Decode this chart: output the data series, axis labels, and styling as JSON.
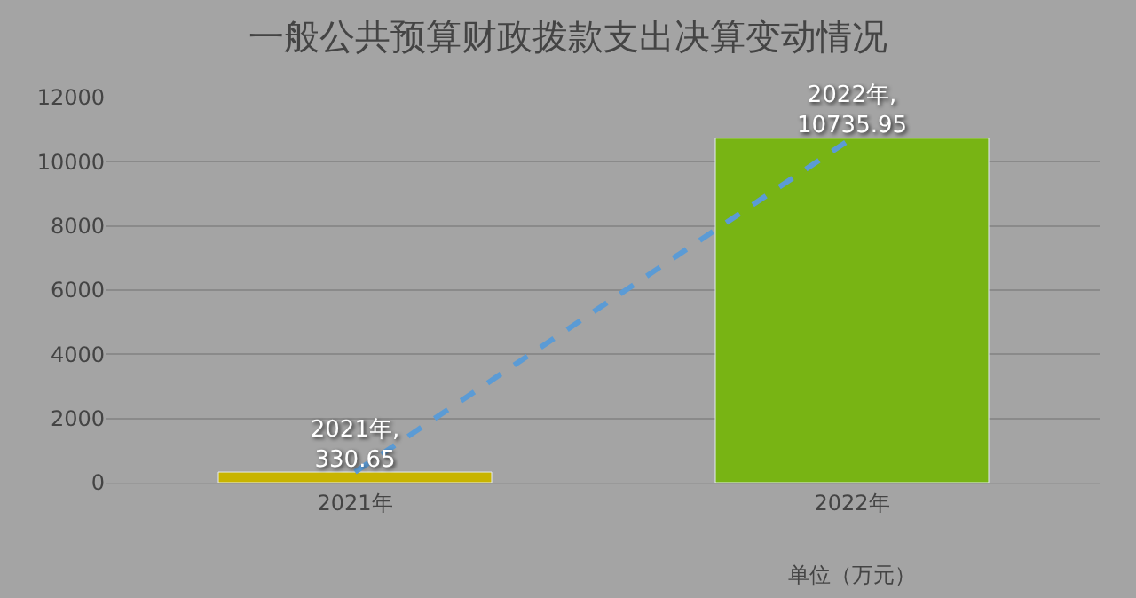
{
  "chart_data": {
    "type": "bar",
    "title": "一般公共预算财政拨款支出决算变动情况",
    "categories": [
      "2021年",
      "2022年"
    ],
    "series": [
      {
        "colors": [
          "#c8b400",
          "#78b414"
        ],
        "values": [
          330.65,
          10735.95
        ]
      },
      {
        "type": "line",
        "color": "#5b9bd5",
        "line_style": "dashed",
        "marker": "none",
        "values": [
          330.65,
          10735.95
        ],
        "value_labels": [
          "2021年,\n330.65",
          "2022年,\n10735.95"
        ]
      }
    ],
    "ylim": [
      0,
      12000
    ],
    "yticks": [
      0,
      2000,
      4000,
      6000,
      8000,
      10000,
      12000
    ],
    "grid": "y",
    "annotations": [
      "单位（万元）"
    ]
  }
}
